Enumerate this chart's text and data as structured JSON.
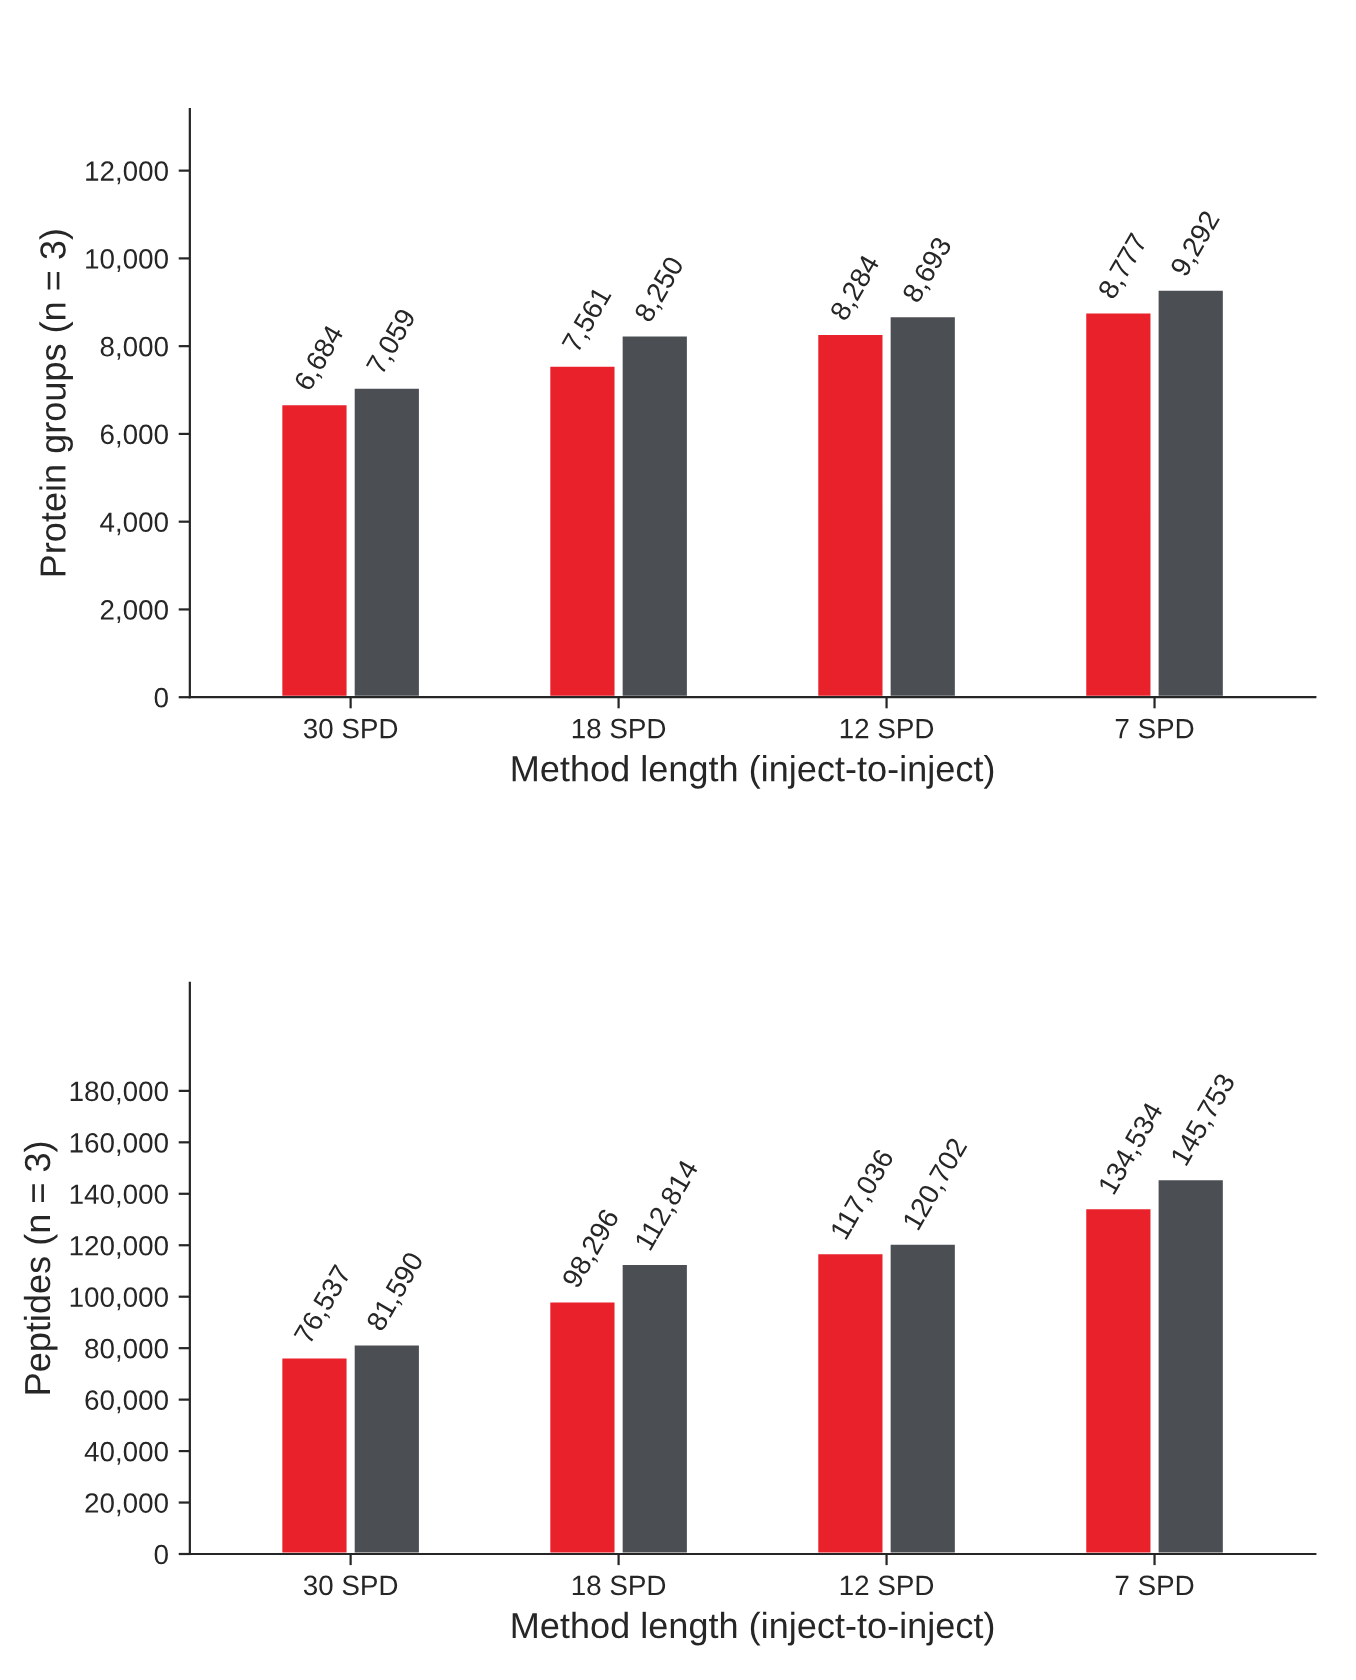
{
  "chart_data": [
    {
      "type": "bar",
      "xlabel": "Method length (inject-to-inject)",
      "ylabel": "Protein groups (n = 3)",
      "categories": [
        "30 SPD",
        "18 SPD",
        "12 SPD",
        "7 SPD"
      ],
      "series": [
        {
          "color": "#e8212b",
          "values": [
            6684,
            7561,
            8284,
            8777
          ],
          "value_labels": [
            "6,684",
            "7,561",
            "8,284",
            "8,777"
          ]
        },
        {
          "color": "#4b4e53",
          "values": [
            7059,
            8250,
            8693,
            9292
          ],
          "value_labels": [
            "7,059",
            "8,250",
            "8,693",
            "9,292"
          ]
        }
      ],
      "ylim": [
        0,
        13400
      ],
      "yticks": [
        {
          "value": 0,
          "label": "0"
        },
        {
          "value": 2000,
          "label": "2,000"
        },
        {
          "value": 4000,
          "label": "4,000"
        },
        {
          "value": 6000,
          "label": "6,000"
        },
        {
          "value": 8000,
          "label": "8,000"
        },
        {
          "value": 10000,
          "label": "10,000"
        },
        {
          "value": 12000,
          "label": "12,000"
        }
      ],
      "grid": false
    },
    {
      "type": "bar",
      "xlabel": "Method length (inject-to-inject)",
      "ylabel": "Peptides (n = 3)",
      "categories": [
        "30 SPD",
        "18 SPD",
        "12 SPD",
        "7 SPD"
      ],
      "series": [
        {
          "color": "#e8212b",
          "values": [
            76537,
            98296,
            117036,
            134534
          ],
          "value_labels": [
            "76,537",
            "98,296",
            "117,036",
            "134,534"
          ]
        },
        {
          "color": "#4b4e53",
          "values": [
            81590,
            112814,
            120702,
            145753
          ],
          "value_labels": [
            "81,590",
            "112,814",
            "120,702",
            "145,753"
          ]
        }
      ],
      "ylim": [
        0,
        222000
      ],
      "yticks": [
        {
          "value": 0,
          "label": "0"
        },
        {
          "value": 20000,
          "label": "20,000"
        },
        {
          "value": 40000,
          "label": "40,000"
        },
        {
          "value": 60000,
          "label": "60,000"
        },
        {
          "value": 80000,
          "label": "80,000"
        },
        {
          "value": 100000,
          "label": "100,000"
        },
        {
          "value": 120000,
          "label": "120,000"
        },
        {
          "value": 140000,
          "label": "140,000"
        },
        {
          "value": 160000,
          "label": "160,000"
        },
        {
          "value": 180000,
          "label": "180,000"
        }
      ],
      "grid": false
    }
  ]
}
